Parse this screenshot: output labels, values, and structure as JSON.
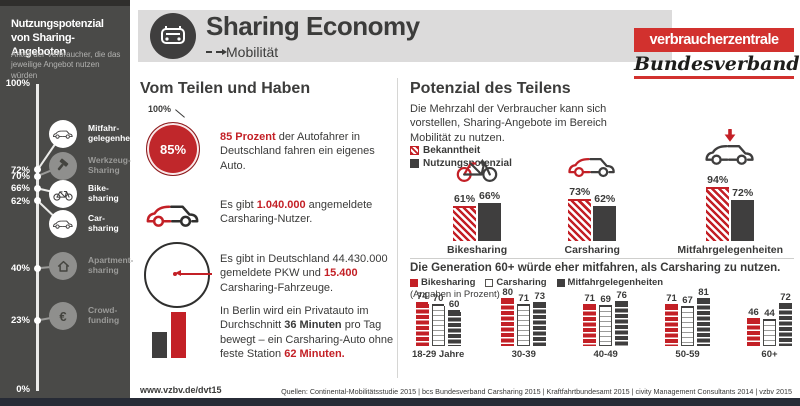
{
  "colors": {
    "accent_red": "#c32026",
    "logo_red": "#d2312e",
    "dark_gray": "#3f3e3e",
    "sidebar_bg": "#4a4a48",
    "band_gray": "#dcdbdb"
  },
  "header": {
    "title": "Sharing Economy",
    "subtitle": "Mobilität"
  },
  "logo": {
    "line1": "verbraucherzentrale",
    "line2": "Bundesverband"
  },
  "sidebar": {
    "title": "Nutzungspotenzial von Sharing-Angeboten",
    "title_line1": "Nutzungspotenzial",
    "title_line2": "von Sharing-Angeboten",
    "subtitle": "Anteil der Verbraucher, die das jeweilige Angebot nutzen würden",
    "axis_top_label": "100%",
    "axis_bottom_label": "0%",
    "items": [
      {
        "label_lines": [
          "Mitfahr-",
          "gelegenheiten"
        ],
        "pct": 72,
        "pct_label": "72%",
        "icon": "car-icon",
        "active": true
      },
      {
        "label_lines": [
          "Werkzeug-",
          "Sharing"
        ],
        "pct": 70,
        "pct_label": "70%",
        "icon": "hammer-icon",
        "active": false
      },
      {
        "label_lines": [
          "Bike-",
          "sharing"
        ],
        "pct": 66,
        "pct_label": "66%",
        "icon": "bike-icon",
        "active": true
      },
      {
        "label_lines": [
          "Car-",
          "sharing"
        ],
        "pct": 62,
        "pct_label": "62%",
        "icon": "car-icon",
        "active": true
      },
      {
        "label_lines": [
          "Apartment-",
          "sharing"
        ],
        "pct": 40,
        "pct_label": "40%",
        "icon": "house-icon",
        "active": false
      },
      {
        "label_lines": [
          "Crowd-",
          "funding"
        ],
        "pct": 23,
        "pct_label": "23%",
        "icon": "euro-icon",
        "active": false
      }
    ]
  },
  "teilen": {
    "heading": "Vom Teilen und Haben",
    "fact1": {
      "circle_value": "85%",
      "reference_label": "100%",
      "segments": [
        {
          "text": "85 Prozent",
          "style": "red-bold"
        },
        {
          "text": " der Autofahrer in Deutschland fahren ein eigenes Auto.",
          "style": "plain"
        }
      ]
    },
    "fact2": {
      "segments": [
        {
          "text": "Es gibt ",
          "style": "plain"
        },
        {
          "text": "1.040.000",
          "style": "red-bold"
        },
        {
          "text": " angemeldete Carsharing-Nutzer.",
          "style": "plain"
        }
      ]
    },
    "fact3": {
      "segments": [
        {
          "text": "Es gibt in Deutschland 44.430.000 gemeldete PKW und ",
          "style": "plain"
        },
        {
          "text": "15.400",
          "style": "red-bold"
        },
        {
          "text": " Carsharing-Fahrzeuge.",
          "style": "plain"
        }
      ]
    },
    "fact4": {
      "segments": [
        {
          "text": "In Berlin wird ein Privatauto im Durchschnitt ",
          "style": "plain"
        },
        {
          "text": "36 Minuten",
          "style": "bold"
        },
        {
          "text": " pro Tag bewegt – ein Carsharing-Auto ohne feste Station ",
          "style": "plain"
        },
        {
          "text": "62 Minuten.",
          "style": "red-bold"
        }
      ]
    }
  },
  "potenzial": {
    "heading": "Potenzial des Teilens",
    "intro": "Die Mehrzahl der Verbraucher kann sich vorstellen, Sharing-Angebote im Bereich Mobilität zu nutzen.",
    "legend": [
      {
        "label": "Bekanntheit",
        "swatch": "hatched-red"
      },
      {
        "label": "Nutzungspotenzial",
        "swatch": "dark"
      }
    ],
    "groups": [
      {
        "label": "Bikesharing",
        "icon": "bike-icon",
        "bekanntheit": 61,
        "nutzungspotenzial": 66,
        "bekanntheit_label": "61%",
        "nutzungspotenzial_label": "66%"
      },
      {
        "label": "Carsharing",
        "icon": "car-icon",
        "bekanntheit": 73,
        "nutzungspotenzial": 62,
        "bekanntheit_label": "73%",
        "nutzungspotenzial_label": "62%"
      },
      {
        "label": "Mitfahrgelegenheiten",
        "icon": "car-down-arrow-icon",
        "bekanntheit": 94,
        "nutzungspotenzial": 72,
        "bekanntheit_label": "94%",
        "nutzungspotenzial_label": "72%"
      }
    ]
  },
  "generation": {
    "title": "Die Generation 60+ würde eher mitfahren, als Carsharing zu nutzen.",
    "note": "(Angaben in Prozent)",
    "legend": [
      {
        "label": "Bikesharing",
        "swatch": "red"
      },
      {
        "label": "Carsharing",
        "swatch": "white"
      },
      {
        "label": "Mitfahrgelegenheiten",
        "swatch": "dark"
      }
    ],
    "groups": [
      {
        "label": "18-29 Jahre",
        "values": [
          74,
          70,
          60
        ]
      },
      {
        "label": "30-39",
        "values": [
          80,
          71,
          73
        ]
      },
      {
        "label": "40-49",
        "values": [
          71,
          69,
          76
        ]
      },
      {
        "label": "50-59",
        "values": [
          71,
          67,
          81
        ]
      },
      {
        "label": "60+",
        "values": [
          46,
          44,
          72
        ]
      }
    ]
  },
  "footer": {
    "url": "www.vzbv.de/dvt15",
    "sources": "Quellen: Continental-Mobilitätsstudie 2015 | bcs Bundesverband Carsharing 2015 | Kraftfahrtbundesamt 2015 | civity Management Consultants 2014 | vzbv 2015"
  },
  "chart_data": [
    {
      "type": "bar",
      "title": "Nutzungspotenzial von Sharing-Angeboten",
      "subtitle": "Anteil der Verbraucher, die das jeweilige Angebot nutzen würden",
      "categories": [
        "Mitfahrgelegenheiten",
        "Werkzeug-Sharing",
        "Bikesharing",
        "Carsharing",
        "Apartment-Sharing",
        "Crowdfunding"
      ],
      "values": [
        72,
        70,
        66,
        62,
        40,
        23
      ],
      "unit": "%",
      "ylim": [
        0,
        100
      ],
      "layout": "vertical-scale-axis"
    },
    {
      "type": "bar",
      "title": "Potenzial des Teilens",
      "categories": [
        "Bikesharing",
        "Carsharing",
        "Mitfahrgelegenheiten"
      ],
      "series": [
        {
          "name": "Bekanntheit",
          "values": [
            61,
            73,
            94
          ]
        },
        {
          "name": "Nutzungspotenzial",
          "values": [
            66,
            62,
            72
          ]
        }
      ],
      "unit": "%",
      "ylim": [
        0,
        100
      ],
      "legend_position": "top-left"
    },
    {
      "type": "bar",
      "title": "Die Generation 60+ würde eher mitfahren, als Carsharing zu nutzen.",
      "note": "(Angaben in Prozent)",
      "categories": [
        "18-29 Jahre",
        "30-39",
        "40-49",
        "50-59",
        "60+"
      ],
      "series": [
        {
          "name": "Bikesharing",
          "values": [
            74,
            80,
            71,
            71,
            46
          ]
        },
        {
          "name": "Carsharing",
          "values": [
            70,
            71,
            69,
            67,
            44
          ]
        },
        {
          "name": "Mitfahrgelegenheiten",
          "values": [
            60,
            73,
            76,
            81,
            72
          ]
        }
      ],
      "unit": "%",
      "ylim": [
        0,
        100
      ],
      "legend_position": "top-left"
    }
  ]
}
